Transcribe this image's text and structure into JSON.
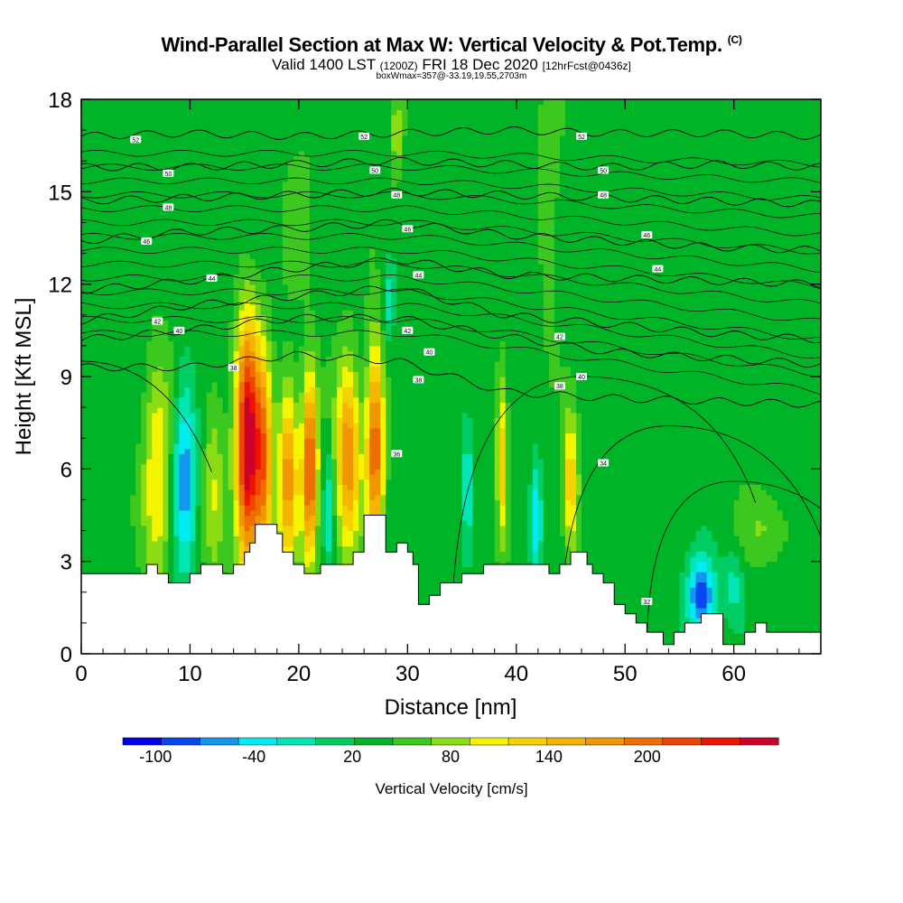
{
  "chart_data": {
    "type": "heatmap",
    "title": "Wind-Parallel Section at Max W: Vertical Velocity & Pot.Temp.",
    "title_mark": "(C)",
    "subtitle": {
      "valid": "Valid 1400 LST",
      "utc": "(1200Z)",
      "date": "FRI 18 Dec 2020",
      "fcst": "[12hrFcst@0436z]"
    },
    "note": "boxWmax=357@-33.19,19.55,2703m",
    "xlabel": "Distance [nm]",
    "ylabel": "Height [Kft MSL]",
    "xlim": [
      0,
      68
    ],
    "ylim": [
      0,
      18
    ],
    "xticks": [
      0,
      10,
      20,
      30,
      40,
      50,
      60
    ],
    "yticks": [
      0,
      3,
      6,
      9,
      12,
      15,
      18
    ],
    "colorbar": {
      "label": "Vertical Velocity [cm/s]",
      "range": [
        -120,
        280
      ],
      "step": 20,
      "tick_labels": [
        "-100",
        "-40",
        "20",
        "80",
        "140",
        "200"
      ],
      "tick_values": [
        -100,
        -40,
        20,
        80,
        140,
        200
      ],
      "colors": [
        "#0000ee",
        "#0a46f0",
        "#1496f0",
        "#00ebf5",
        "#00e6b4",
        "#00cd64",
        "#00b428",
        "#3cc81e",
        "#8cdc14",
        "#f5f500",
        "#f5d200",
        "#f5b400",
        "#f09600",
        "#ee6e00",
        "#ee4600",
        "#ee1400",
        "#cc0028"
      ]
    },
    "background_w": 10,
    "updrafts": [
      {
        "x": 7.0,
        "zc": 5.8,
        "wx": 1.3,
        "wz": 3.8,
        "amp": 70
      },
      {
        "x": 9.5,
        "zc": 5.8,
        "wx": 1.0,
        "wz": 3.2,
        "amp": -80
      },
      {
        "x": 12.2,
        "zc": 5.5,
        "wx": 0.9,
        "wz": 3.5,
        "amp": 45
      },
      {
        "x": 15.3,
        "zc": 6.7,
        "wx": 1.1,
        "wz": 4.0,
        "amp": 215
      },
      {
        "x": 16.8,
        "zc": 6.2,
        "wx": 0.8,
        "wz": 3.5,
        "amp": 120
      },
      {
        "x": 19.0,
        "zc": 5.8,
        "wx": 0.9,
        "wz": 3.0,
        "amp": 120
      },
      {
        "x": 21.0,
        "zc": 6.0,
        "wx": 0.7,
        "wz": 3.0,
        "amp": 165
      },
      {
        "x": 22.7,
        "zc": 4.7,
        "wx": 0.4,
        "wz": 1.8,
        "amp": -50
      },
      {
        "x": 24.5,
        "zc": 6.4,
        "wx": 1.1,
        "wz": 3.0,
        "amp": 130
      },
      {
        "x": 27.0,
        "zc": 6.8,
        "wx": 0.8,
        "wz": 3.3,
        "amp": 150
      },
      {
        "x": 29.0,
        "zc": 16.8,
        "wx": 0.5,
        "wz": 1.6,
        "amp": 40
      },
      {
        "x": 28.3,
        "zc": 11.4,
        "wx": 0.5,
        "wz": 1.2,
        "amp": -45
      },
      {
        "x": 35.5,
        "zc": 5.5,
        "wx": 0.4,
        "wz": 2.2,
        "amp": -55
      },
      {
        "x": 38.7,
        "zc": 6.2,
        "wx": 0.5,
        "wz": 2.8,
        "amp": 85
      },
      {
        "x": 41.8,
        "zc": 4.3,
        "wx": 0.5,
        "wz": 1.8,
        "amp": -70
      },
      {
        "x": 45.0,
        "zc": 5.6,
        "wx": 0.7,
        "wz": 2.3,
        "amp": 90
      },
      {
        "x": 57.0,
        "zc": 1.9,
        "wx": 1.3,
        "wz": 1.2,
        "amp": -105
      },
      {
        "x": 60.0,
        "zc": 2.2,
        "wx": 0.9,
        "wz": 1.1,
        "amp": -40
      },
      {
        "x": 63.0,
        "zc": 4.1,
        "wx": 2.5,
        "wz": 1.2,
        "amp": 30
      },
      {
        "x": 43.0,
        "zc": 14.5,
        "wx": 1.2,
        "wz": 4.0,
        "amp": 22
      },
      {
        "x": 20.0,
        "zc": 14.5,
        "wx": 1.5,
        "wz": 3.0,
        "amp": 18
      }
    ],
    "terrain": [
      [
        0,
        2.6
      ],
      [
        6,
        2.6
      ],
      [
        6,
        2.9
      ],
      [
        7,
        2.9
      ],
      [
        7,
        2.6
      ],
      [
        8,
        2.6
      ],
      [
        8,
        2.3
      ],
      [
        10,
        2.3
      ],
      [
        10,
        2.6
      ],
      [
        11,
        2.6
      ],
      [
        11,
        2.9
      ],
      [
        13,
        2.9
      ],
      [
        13,
        2.6
      ],
      [
        14,
        2.6
      ],
      [
        14,
        2.9
      ],
      [
        15,
        2.9
      ],
      [
        15,
        3.3
      ],
      [
        15.5,
        3.3
      ],
      [
        15.5,
        3.6
      ],
      [
        16,
        3.6
      ],
      [
        16,
        4.2
      ],
      [
        18,
        4.2
      ],
      [
        18,
        3.9
      ],
      [
        18.5,
        3.9
      ],
      [
        18.5,
        3.3
      ],
      [
        19.5,
        3.3
      ],
      [
        19.5,
        2.9
      ],
      [
        20.5,
        2.9
      ],
      [
        20.5,
        2.6
      ],
      [
        22,
        2.6
      ],
      [
        22,
        2.9
      ],
      [
        25,
        2.9
      ],
      [
        25,
        3.3
      ],
      [
        26,
        3.3
      ],
      [
        26,
        4.5
      ],
      [
        28,
        4.5
      ],
      [
        28,
        3.3
      ],
      [
        29,
        3.3
      ],
      [
        29,
        3.6
      ],
      [
        30,
        3.6
      ],
      [
        30,
        3.3
      ],
      [
        30.5,
        3.3
      ],
      [
        30.5,
        2.9
      ],
      [
        31,
        2.9
      ],
      [
        31,
        1.6
      ],
      [
        32,
        1.6
      ],
      [
        32,
        1.9
      ],
      [
        33,
        1.9
      ],
      [
        33,
        2.3
      ],
      [
        35,
        2.3
      ],
      [
        35,
        2.6
      ],
      [
        37,
        2.6
      ],
      [
        37,
        2.9
      ],
      [
        43,
        2.9
      ],
      [
        43,
        2.6
      ],
      [
        44,
        2.6
      ],
      [
        44,
        2.9
      ],
      [
        45,
        2.9
      ],
      [
        45,
        3.3
      ],
      [
        46.5,
        3.3
      ],
      [
        46.5,
        2.9
      ],
      [
        47,
        2.9
      ],
      [
        47,
        2.6
      ],
      [
        48,
        2.6
      ],
      [
        48,
        2.3
      ],
      [
        49,
        2.3
      ],
      [
        49,
        1.6
      ],
      [
        50,
        1.6
      ],
      [
        50,
        1.3
      ],
      [
        51,
        1.3
      ],
      [
        51,
        1.0
      ],
      [
        52,
        1.0
      ],
      [
        52,
        0.7
      ],
      [
        53.5,
        0.7
      ],
      [
        53.5,
        0.3
      ],
      [
        54.5,
        0.3
      ],
      [
        54.5,
        0.7
      ],
      [
        55.5,
        0.7
      ],
      [
        55.5,
        1.0
      ],
      [
        57,
        1.0
      ],
      [
        57,
        1.3
      ],
      [
        59,
        1.3
      ],
      [
        59,
        0.3
      ],
      [
        61,
        0.3
      ],
      [
        61,
        0.7
      ],
      [
        62,
        0.7
      ],
      [
        62,
        1.0
      ],
      [
        63,
        1.0
      ],
      [
        63,
        0.7
      ],
      [
        68,
        0.7
      ]
    ],
    "theta_contours": [
      {
        "label": "52",
        "z": [
          16.8,
          16.9,
          16.8,
          16.9,
          17.0,
          16.9,
          16.9,
          16.8
        ]
      },
      {
        "label": "50",
        "z": [
          15.8,
          15.8,
          15.9,
          16.0,
          15.9,
          15.8,
          15.9,
          15.8
        ]
      },
      {
        "label": "48",
        "z": [
          14.7,
          14.8,
          14.9,
          15.0,
          14.9,
          14.8,
          14.7,
          14.6
        ]
      },
      {
        "label": "46",
        "z": [
          13.4,
          13.7,
          13.8,
          14.0,
          13.6,
          13.4,
          13.2,
          13.1
        ]
      },
      {
        "label": "44",
        "z": [
          11.8,
          12.1,
          12.5,
          12.8,
          12.3,
          12.2,
          12.1,
          12.0
        ]
      },
      {
        "label": "42",
        "z": [
          10.8,
          11.3,
          11.6,
          11.9,
          11.0,
          10.7,
          10.4,
          10.2
        ]
      },
      {
        "label": "40",
        "z": [
          10.2,
          10.5,
          10.9,
          10.9,
          10.3,
          9.8,
          9.6,
          9.4
        ]
      },
      {
        "label": "38",
        "z": [
          9.3,
          9.3,
          9.7,
          9.5,
          8.5,
          8.3,
          8.2,
          8.1
        ]
      }
    ],
    "theta_labels": [
      {
        "text": "52",
        "x": 5.0,
        "z": 16.7
      },
      {
        "text": "52",
        "x": 46.0,
        "z": 16.8
      },
      {
        "text": "52",
        "x": 26.0,
        "z": 16.8
      },
      {
        "text": "50",
        "x": 8.0,
        "z": 15.6
      },
      {
        "text": "50",
        "x": 27.0,
        "z": 15.7
      },
      {
        "text": "50",
        "x": 48.0,
        "z": 15.7
      },
      {
        "text": "48",
        "x": 8.0,
        "z": 14.5
      },
      {
        "text": "48",
        "x": 29.0,
        "z": 14.9
      },
      {
        "text": "48",
        "x": 48.0,
        "z": 14.9
      },
      {
        "text": "46",
        "x": 6.0,
        "z": 13.4
      },
      {
        "text": "46",
        "x": 30.0,
        "z": 13.8
      },
      {
        "text": "46",
        "x": 52.0,
        "z": 13.6
      },
      {
        "text": "44",
        "x": 12.0,
        "z": 12.2
      },
      {
        "text": "44",
        "x": 31.0,
        "z": 12.3
      },
      {
        "text": "44",
        "x": 53.0,
        "z": 12.5
      },
      {
        "text": "42",
        "x": 7.0,
        "z": 10.8
      },
      {
        "text": "42",
        "x": 30.0,
        "z": 10.5
      },
      {
        "text": "42",
        "x": 44.0,
        "z": 10.3
      },
      {
        "text": "40",
        "x": 9.0,
        "z": 10.5
      },
      {
        "text": "40",
        "x": 32.0,
        "z": 9.8
      },
      {
        "text": "40",
        "x": 46.0,
        "z": 9.0
      },
      {
        "text": "38",
        "x": 14.0,
        "z": 9.3
      },
      {
        "text": "38",
        "x": 31.0,
        "z": 8.9
      },
      {
        "text": "38",
        "x": 44.0,
        "z": 8.7
      },
      {
        "text": "36",
        "x": 29.0,
        "z": 6.5
      },
      {
        "text": "34",
        "x": 48.0,
        "z": 6.2
      },
      {
        "text": "32",
        "x": 52.0,
        "z": 1.7
      }
    ]
  }
}
